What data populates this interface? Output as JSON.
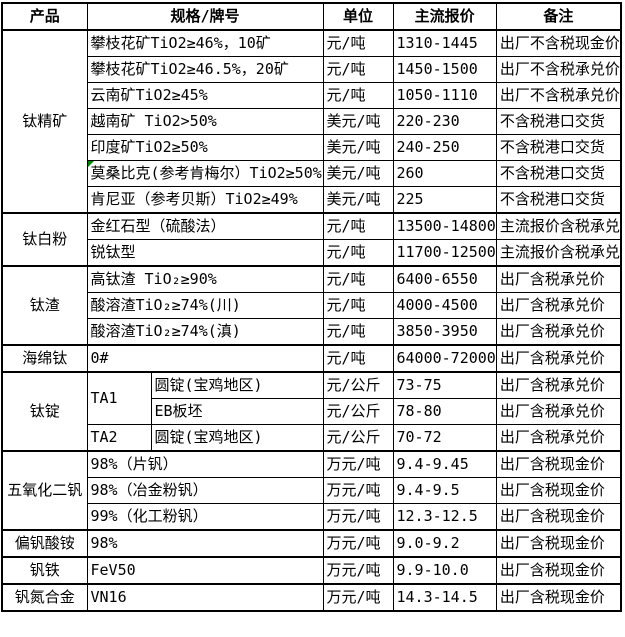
{
  "colors": {
    "border": "#000000",
    "text": "#000000",
    "cell_background": "#ffffff",
    "marker_green": "#008000"
  },
  "table": {
    "headers": [
      "产品",
      "规格/牌号",
      "单位",
      "主流报价",
      "备注"
    ],
    "groups": [
      {
        "product": "钛精矿",
        "rows": [
          {
            "spec": "攀枝花矿TiO2≥46%，10矿",
            "unit": "元/吨",
            "price": "1310-1445",
            "note": "出厂不含税现金价"
          },
          {
            "spec": "攀枝花矿TiO2≥46.5%，20矿",
            "unit": "元/吨",
            "price": "1450-1500",
            "note": "出厂不含税承兑价"
          },
          {
            "spec": "云南矿TiO2≥45%",
            "unit": "元/吨",
            "price": "1050-1110",
            "note": "出厂不含税承兑价"
          },
          {
            "spec": "越南矿 TiO2>50%",
            "unit": "美元/吨",
            "price": "220-230",
            "note": "不含税港口交货"
          },
          {
            "spec": "印度矿TiO2≥50%",
            "unit": "美元/吨",
            "price": "240-250",
            "note": "不含税港口交货"
          },
          {
            "spec": "莫桑比克(参考肯梅尔）TiO2≥50%",
            "unit": "美元/吨",
            "price": "260",
            "note": "不含税港口交货",
            "marker": true
          },
          {
            "spec": "肯尼亚（参考贝斯）TiO2≥49%",
            "unit": "美元/吨",
            "price": "225",
            "note": "不含税港口交货"
          }
        ]
      },
      {
        "product": "钛白粉",
        "rows": [
          {
            "spec": "金红石型（硫酸法）",
            "unit": "元/吨",
            "price": "13500-14800",
            "note": "主流报价含税承兑"
          },
          {
            "spec": "锐钛型",
            "unit": "元/吨",
            "price": "11700-12500",
            "note": "主流报价含税承兑"
          }
        ]
      },
      {
        "product": "钛渣",
        "rows": [
          {
            "spec": "高钛渣 TiO₂≥90%",
            "unit": "元/吨",
            "price": "6400-6550",
            "note": "出厂含税承兑价"
          },
          {
            "spec": "酸溶渣TiO₂≥74%(川)",
            "unit": "元/吨",
            "price": "4000-4500",
            "note": "出厂含税承兑价"
          },
          {
            "spec": "酸溶渣TiO₂≥74%(滇)",
            "unit": "元/吨",
            "price": "3850-3950",
            "note": "出厂含税承兑价"
          }
        ]
      },
      {
        "product": "海绵钛",
        "rows": [
          {
            "spec": "0#",
            "unit": "元/吨",
            "price": "64000-72000",
            "note": "出厂含税承兑价"
          }
        ]
      },
      {
        "product": "钛锭",
        "split_spec": true,
        "rows": [
          {
            "grade": "TA1",
            "grade_span": 2,
            "spec": "圆锭(宝鸡地区)",
            "unit": "元/公斤",
            "price": "73-75",
            "note": "出厂含税承兑价"
          },
          {
            "spec": "EB板坯",
            "unit": "元/公斤",
            "price": "78-80",
            "note": "出厂含税承兑价"
          },
          {
            "grade": "TA2",
            "grade_span": 1,
            "spec": "圆锭(宝鸡地区)",
            "unit": "元/公斤",
            "price": "70-72",
            "note": "出厂含税承兑价"
          }
        ]
      },
      {
        "product": "五氧化二钒",
        "rows": [
          {
            "spec": "98%（片钒）",
            "unit": "万元/吨",
            "price": "9.4-9.45",
            "note": "出厂含税现金价"
          },
          {
            "spec": "98%（冶金粉钒）",
            "unit": "万元/吨",
            "price": "9.4-9.5",
            "note": "出厂含税现金价"
          },
          {
            "spec": "99%（化工粉钒）",
            "unit": "万元/吨",
            "price": "12.3-12.5",
            "note": "出厂含税现金价"
          }
        ]
      },
      {
        "product": "偏钒酸铵",
        "rows": [
          {
            "spec": "98%",
            "unit": "万元/吨",
            "price": "9.0-9.2",
            "note": "出厂含税现金价"
          }
        ]
      },
      {
        "product": "钒铁",
        "rows": [
          {
            "spec": "FeV50",
            "unit": "万元/吨",
            "price": "9.9-10.0",
            "note": "出厂含税现金价"
          }
        ]
      },
      {
        "product": "钒氮合金",
        "rows": [
          {
            "spec": "VN16",
            "unit": "万元/吨",
            "price": "14.3-14.5",
            "note": "出厂含税现金价"
          }
        ]
      }
    ]
  }
}
